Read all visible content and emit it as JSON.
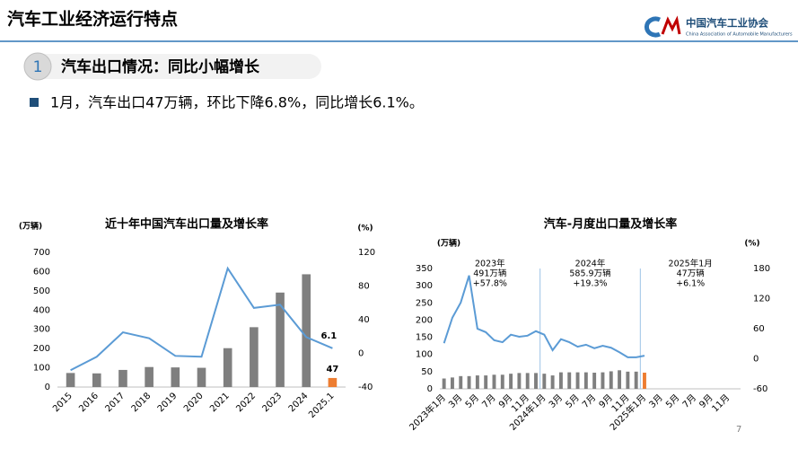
{
  "header": {
    "title": "汽车工业经济运行特点",
    "logo_cn": "中国汽车工业协会",
    "logo_en": "China Association of Automobile Manufacturers"
  },
  "section": {
    "number": "1",
    "title": "汽车出口情况：同比小幅增长"
  },
  "bullet": "1月，汽车出口47万辆，环比下降6.8%，同比增长6.1%。",
  "page_number": "7",
  "chart_data": [
    {
      "type": "bar",
      "title": "近十年中国汽车出口量及增长率",
      "y_label": "(万辆)",
      "y2_label": "(%)",
      "categories": [
        "2015",
        "2016",
        "2017",
        "2018",
        "2019",
        "2020",
        "2021",
        "2022",
        "2023",
        "2024",
        "2025.1"
      ],
      "series": [
        {
          "type": "bar",
          "color": "#7f7f7f",
          "last_color": "#ed7d31",
          "values": [
            73,
            71,
            89,
            104,
            102,
            100,
            202,
            311,
            491,
            586,
            47
          ]
        },
        {
          "type": "line",
          "axis": "y2",
          "color": "#5b9bd5",
          "values": [
            -20,
            -4,
            25,
            18,
            -3,
            -4,
            101,
            54,
            57.8,
            19.3,
            6.1
          ]
        }
      ],
      "data_labels": "last",
      "ylim": [
        0,
        700
      ],
      "yticks": [
        0,
        100,
        200,
        300,
        400,
        500,
        600,
        700
      ],
      "y2lim": [
        -40,
        120
      ],
      "y2ticks": [
        -40,
        0,
        40,
        80,
        120
      ]
    },
    {
      "type": "bar",
      "title": "汽车-月度出口量及增长率",
      "y_label": "(万辆)",
      "y2_label": "(%)",
      "categories": [
        "2023年1月",
        null,
        "3月",
        null,
        "5月",
        null,
        "7月",
        null,
        "9月",
        null,
        "11月",
        null,
        "2024年1月",
        null,
        "3月",
        null,
        "5月",
        null,
        "7月",
        null,
        "9月",
        null,
        "11月",
        null,
        "2025年1月",
        null,
        "3月",
        null,
        "5月",
        null,
        "7月",
        null,
        "9月",
        null,
        "11月",
        null
      ],
      "series": [
        {
          "type": "bar",
          "color": "#7f7f7f",
          "last_color": "#ed7d31",
          "values": [
            30,
            33,
            37,
            37,
            39,
            39,
            41,
            41,
            44,
            46,
            46,
            46,
            44,
            39,
            48,
            48,
            48,
            48,
            47,
            48,
            51,
            54,
            50,
            50,
            47,
            null,
            null,
            null,
            null,
            null,
            null,
            null,
            null,
            null,
            null,
            null
          ]
        },
        {
          "type": "line",
          "axis": "y2",
          "color": "#5b9bd5",
          "values": [
            31,
            82,
            112,
            166,
            60,
            53,
            37,
            33,
            48,
            44,
            46,
            55,
            48,
            17,
            39,
            33,
            24,
            28,
            21,
            26,
            22,
            13,
            3,
            3,
            6.1,
            null,
            null,
            null,
            null,
            null,
            null,
            null,
            null,
            null,
            null,
            null
          ]
        }
      ],
      "annotations": [
        [
          "2023年",
          "491万辆",
          "+57.8%"
        ],
        [
          "2024年",
          "585.9万辆",
          "+19.3%"
        ],
        [
          "2025年1月",
          "47万辆",
          "+6.1%"
        ]
      ],
      "ylim": [
        0,
        350
      ],
      "yticks": [
        0,
        50,
        100,
        150,
        200,
        250,
        300,
        350
      ],
      "y2lim": [
        -60,
        180
      ],
      "y2ticks": [
        -60,
        0,
        60,
        120,
        180
      ]
    }
  ]
}
